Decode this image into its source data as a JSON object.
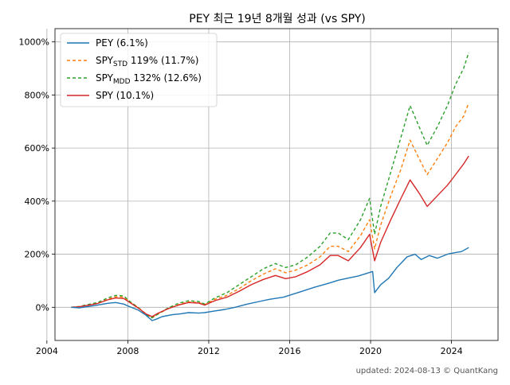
{
  "chart_data": {
    "type": "line",
    "title": "PEY 최근 19년 8개월 성과 (vs SPY)",
    "xlabel": "",
    "ylabel": "",
    "xlim": [
      2004.4,
      2026.3
    ],
    "ylim": [
      -125,
      1050
    ],
    "x_ticks": [
      2004,
      2008,
      2012,
      2016,
      2020,
      2024
    ],
    "y_ticks": [
      0,
      200,
      400,
      600,
      800,
      1000
    ],
    "y_tick_labels": [
      "0%",
      "200%",
      "400%",
      "600%",
      "800%",
      "1000%"
    ],
    "grid": true,
    "legend_position": "top-left",
    "footer": "updated: 2024-08-13 © QuantKang",
    "series": [
      {
        "name": "PEY (6.1%)",
        "color": "#1f77b4",
        "dash": "solid",
        "x": [
          2005.2,
          2005.6,
          2006.0,
          2006.5,
          2007.0,
          2007.4,
          2007.8,
          2008.1,
          2008.5,
          2008.9,
          2009.2,
          2009.4,
          2009.7,
          2010.2,
          2010.6,
          2011.0,
          2011.5,
          2011.8,
          2012.2,
          2012.8,
          2013.3,
          2013.9,
          2014.5,
          2015.0,
          2015.7,
          2016.1,
          2016.6,
          2017.2,
          2017.9,
          2018.4,
          2018.9,
          2019.4,
          2019.9,
          2020.1,
          2020.2,
          2020.5,
          2020.9,
          2021.3,
          2021.8,
          2022.2,
          2022.5,
          2022.9,
          2023.3,
          2023.8,
          2024.1,
          2024.5,
          2024.85
        ],
        "y": [
          0,
          -2,
          2,
          8,
          15,
          18,
          12,
          2,
          -10,
          -30,
          -50,
          -45,
          -35,
          -28,
          -25,
          -20,
          -22,
          -20,
          -15,
          -8,
          0,
          12,
          22,
          30,
          38,
          48,
          60,
          75,
          90,
          102,
          110,
          118,
          130,
          135,
          55,
          85,
          110,
          150,
          190,
          200,
          180,
          195,
          185,
          200,
          205,
          210,
          225
        ]
      },
      {
        "name": "SPY<sub>STD</sub> 119% (11.7%)",
        "color": "#ff7f0e",
        "dash": "4,3",
        "x": [
          2005.2,
          2005.6,
          2006.0,
          2006.5,
          2007.0,
          2007.4,
          2007.8,
          2008.1,
          2008.5,
          2008.9,
          2009.2,
          2009.5,
          2010.0,
          2010.5,
          2011.0,
          2011.5,
          2011.8,
          2012.3,
          2012.9,
          2013.5,
          2014.1,
          2014.7,
          2015.3,
          2015.8,
          2016.3,
          2016.9,
          2017.5,
          2018.0,
          2018.4,
          2018.9,
          2019.5,
          2019.95,
          2020.2,
          2020.5,
          2021.0,
          2021.5,
          2021.95,
          2022.4,
          2022.8,
          2023.3,
          2023.8,
          2024.2,
          2024.6,
          2024.85
        ],
        "y": [
          0,
          2,
          8,
          15,
          30,
          40,
          38,
          20,
          0,
          -25,
          -40,
          -25,
          -5,
          10,
          20,
          18,
          10,
          30,
          45,
          70,
          100,
          125,
          145,
          130,
          140,
          160,
          190,
          230,
          230,
          210,
          270,
          330,
          220,
          310,
          420,
          520,
          630,
          560,
          500,
          560,
          620,
          680,
          720,
          770
        ]
      },
      {
        "name": "SPY<sub>MDD</sub> 132% (12.6%)",
        "color": "#2ca02c",
        "dash": "4,3",
        "x": [
          2005.2,
          2005.6,
          2006.0,
          2006.5,
          2007.0,
          2007.4,
          2007.8,
          2008.1,
          2008.5,
          2008.9,
          2009.2,
          2009.5,
          2010.0,
          2010.5,
          2011.0,
          2011.5,
          2011.8,
          2012.3,
          2012.9,
          2013.5,
          2014.1,
          2014.7,
          2015.3,
          2015.8,
          2016.3,
          2016.9,
          2017.5,
          2018.0,
          2018.4,
          2018.9,
          2019.5,
          2019.95,
          2020.2,
          2020.5,
          2021.0,
          2021.5,
          2021.95,
          2022.4,
          2022.8,
          2023.3,
          2023.8,
          2024.2,
          2024.6,
          2024.85
        ],
        "y": [
          0,
          3,
          10,
          18,
          35,
          45,
          43,
          22,
          0,
          -28,
          -40,
          -25,
          -2,
          15,
          25,
          22,
          12,
          35,
          55,
          85,
          115,
          145,
          165,
          150,
          160,
          190,
          230,
          280,
          280,
          255,
          330,
          410,
          275,
          380,
          510,
          640,
          760,
          680,
          610,
          680,
          760,
          840,
          900,
          960
        ]
      },
      {
        "name": "SPY (10.1%)",
        "color": "#d62728",
        "dash": "solid",
        "x": [
          2005.2,
          2005.6,
          2006.0,
          2006.5,
          2007.0,
          2007.4,
          2007.8,
          2008.1,
          2008.5,
          2008.9,
          2009.2,
          2009.5,
          2010.0,
          2010.5,
          2011.0,
          2011.5,
          2011.8,
          2012.3,
          2012.9,
          2013.5,
          2014.1,
          2014.7,
          2015.3,
          2015.8,
          2016.3,
          2016.9,
          2017.5,
          2018.0,
          2018.4,
          2018.9,
          2019.5,
          2019.95,
          2020.2,
          2020.5,
          2021.0,
          2021.5,
          2021.95,
          2022.4,
          2022.8,
          2023.3,
          2023.8,
          2024.2,
          2024.6,
          2024.85
        ],
        "y": [
          0,
          2,
          7,
          14,
          28,
          35,
          33,
          18,
          -2,
          -25,
          -35,
          -22,
          -5,
          8,
          18,
          16,
          8,
          25,
          38,
          60,
          85,
          105,
          120,
          108,
          115,
          135,
          160,
          195,
          195,
          175,
          225,
          275,
          175,
          245,
          330,
          410,
          480,
          430,
          380,
          420,
          460,
          500,
          540,
          570
        ]
      }
    ]
  }
}
